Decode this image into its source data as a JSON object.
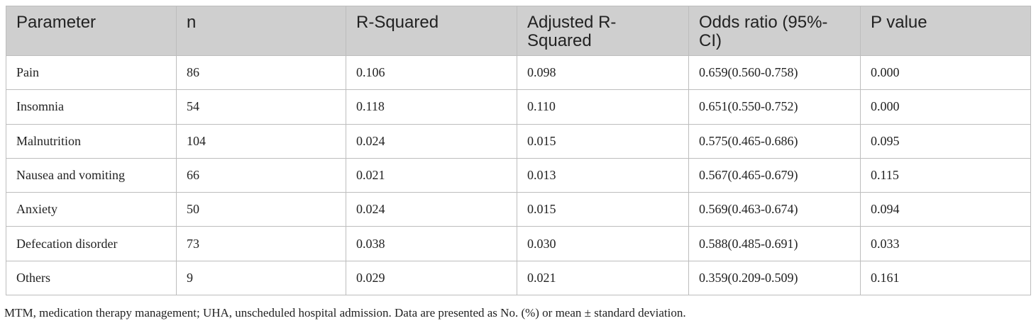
{
  "table": {
    "headers": [
      "Parameter",
      "n",
      "R-Squared",
      "Adjusted R-Squared",
      "Odds ratio (95%-CI)",
      "P value"
    ],
    "rows": [
      [
        "Pain",
        "86",
        "0.106",
        "0.098",
        "0.659(0.560-0.758)",
        "0.000"
      ],
      [
        "Insomnia",
        "54",
        "0.118",
        "0.110",
        "0.651(0.550-0.752)",
        "0.000"
      ],
      [
        "Malnutrition",
        "104",
        "0.024",
        "0.015",
        "0.575(0.465-0.686)",
        "0.095"
      ],
      [
        "Nausea and vomiting",
        "66",
        "0.021",
        "0.013",
        "0.567(0.465-0.679)",
        "0.115"
      ],
      [
        "Anxiety",
        "50",
        "0.024",
        "0.015",
        "0.569(0.463-0.674)",
        "0.094"
      ],
      [
        "Defecation disorder",
        "73",
        "0.038",
        "0.030",
        "0.588(0.485-0.691)",
        "0.033"
      ],
      [
        "Others",
        "9",
        "0.029",
        "0.021",
        "0.359(0.209-0.509)",
        "0.161"
      ]
    ]
  },
  "footnote": "MTM, medication therapy management; UHA, unscheduled hospital admission. Data are presented as No. (%) or mean ± standard deviation."
}
